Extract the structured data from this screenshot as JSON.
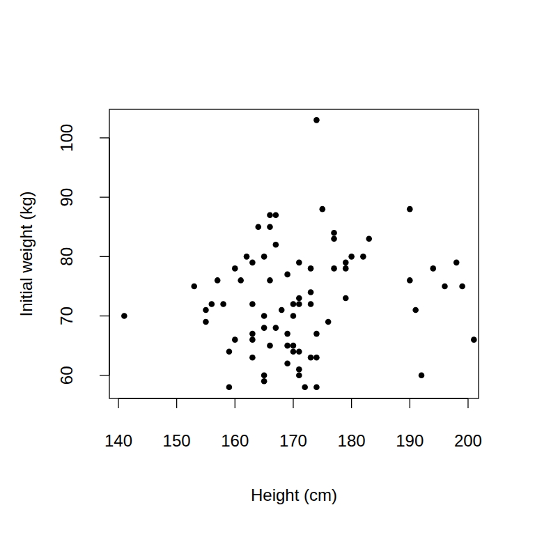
{
  "chart_data": {
    "type": "scatter",
    "x_label": "Height (cm)",
    "y_label": "Initial weight (kg)",
    "color": "#000000",
    "marker": "circle",
    "x": [
      141,
      153,
      155,
      155,
      156,
      157,
      158,
      159,
      159,
      160,
      160,
      161,
      162,
      163,
      163,
      163,
      163,
      163,
      164,
      165,
      165,
      165,
      165,
      165,
      166,
      166,
      166,
      166,
      167,
      167,
      167,
      168,
      169,
      169,
      169,
      169,
      170,
      170,
      170,
      170,
      171,
      171,
      171,
      171,
      171,
      171,
      172,
      173,
      173,
      173,
      173,
      174,
      174,
      174,
      174,
      175,
      176,
      177,
      177,
      177,
      179,
      179,
      179,
      180,
      182,
      183,
      190,
      190,
      191,
      192,
      194,
      196,
      198,
      199,
      201
    ],
    "values": [
      70,
      75,
      71,
      69,
      72,
      76,
      72,
      64,
      58,
      78,
      66,
      76,
      80,
      79,
      72,
      67,
      66,
      63,
      85,
      80,
      70,
      68,
      60,
      59,
      87,
      85,
      76,
      65,
      87,
      82,
      68,
      71,
      77,
      67,
      65,
      62,
      72,
      70,
      65,
      64,
      79,
      73,
      72,
      64,
      61,
      60,
      58,
      78,
      74,
      72,
      63,
      103,
      67,
      63,
      58,
      88,
      69,
      84,
      83,
      78,
      79,
      78,
      73,
      80,
      80,
      83,
      88,
      76,
      71,
      60,
      78,
      75,
      79,
      75,
      66
    ],
    "xlim": [
      138.45,
      201.8
    ],
    "ylim": [
      56.1,
      104.8
    ],
    "xticks": [
      140,
      150,
      160,
      170,
      180,
      190,
      200
    ],
    "yticks": [
      60,
      70,
      80,
      90,
      100
    ]
  }
}
